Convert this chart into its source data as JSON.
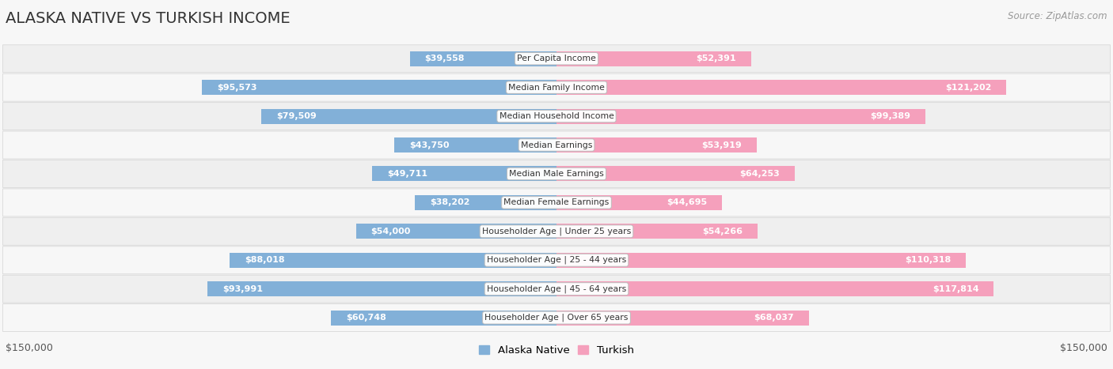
{
  "title": "ALASKA NATIVE VS TURKISH INCOME",
  "source": "Source: ZipAtlas.com",
  "categories": [
    "Per Capita Income",
    "Median Family Income",
    "Median Household Income",
    "Median Earnings",
    "Median Male Earnings",
    "Median Female Earnings",
    "Householder Age | Under 25 years",
    "Householder Age | 25 - 44 years",
    "Householder Age | 45 - 64 years",
    "Householder Age | Over 65 years"
  ],
  "alaska_values": [
    39558,
    95573,
    79509,
    43750,
    49711,
    38202,
    54000,
    88018,
    93991,
    60748
  ],
  "turkish_values": [
    52391,
    121202,
    99389,
    53919,
    64253,
    44695,
    54266,
    110318,
    117814,
    68037
  ],
  "alaska_labels": [
    "$39,558",
    "$95,573",
    "$79,509",
    "$43,750",
    "$49,711",
    "$38,202",
    "$54,000",
    "$88,018",
    "$93,991",
    "$60,748"
  ],
  "turkish_labels": [
    "$52,391",
    "$121,202",
    "$99,389",
    "$53,919",
    "$64,253",
    "$44,695",
    "$54,266",
    "$110,318",
    "$117,814",
    "$68,037"
  ],
  "alaska_color": "#82b0d8",
  "turkish_color": "#f5a0bc",
  "max_value": 150000,
  "legend_alaska": "Alaska Native",
  "legend_turkish": "Turkish",
  "bar_height": 0.52,
  "bg_color": "#f7f7f7",
  "row_colors": [
    "#efefef",
    "#f7f7f7"
  ],
  "inside_label_threshold": 28000,
  "inside_label_color_alaska": "white",
  "inside_label_color_turkish": "white",
  "outside_label_color": "#444444",
  "title_fontsize": 14,
  "label_fontsize": 8,
  "cat_fontsize": 7.8,
  "source_fontsize": 8.5,
  "axis_label_fontsize": 9
}
